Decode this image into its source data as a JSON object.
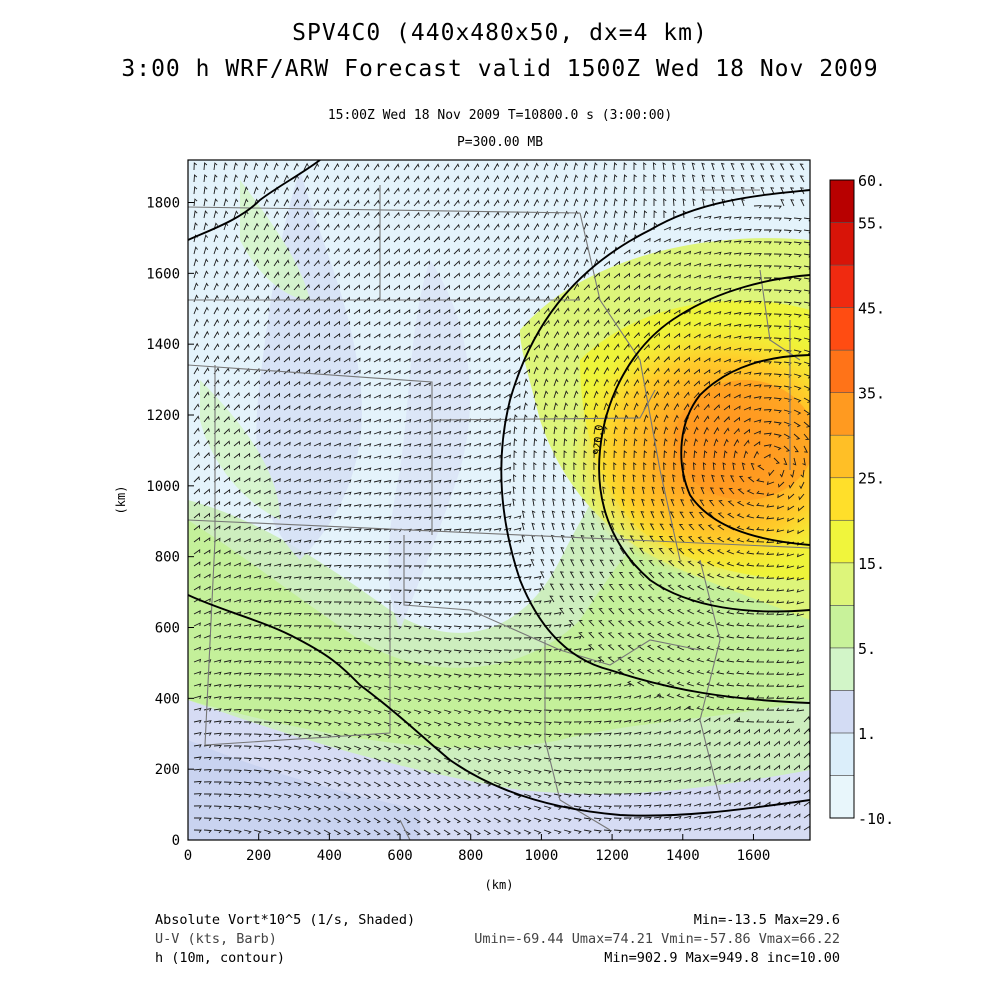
{
  "header": {
    "title": "SPV4C0 (440x480x50, dx=4 km)",
    "subtitle": "3:00 h WRF/ARW Forecast valid 1500Z Wed 18 Nov 2009",
    "valid_time": "15:00Z Wed 18 Nov 2009     T=10800.0 s (3:00:00)",
    "level": "P=300.00 MB"
  },
  "map": {
    "xlabel": "(km)",
    "ylabel": "(km)",
    "x_ticks": [
      "0",
      "200",
      "400",
      "600",
      "800",
      "1000",
      "1200",
      "1400",
      "1600"
    ],
    "y_ticks": [
      "0",
      "200",
      "400",
      "600",
      "800",
      "1000",
      "1200",
      "1400",
      "1600",
      "1800"
    ],
    "xlim": [
      0,
      1760
    ],
    "ylim": [
      0,
      1920
    ],
    "contour_label": "920.0",
    "field_peak_km": [
      1640,
      1060
    ],
    "colorbar": {
      "levels": [
        "-10.",
        "",
        "1.",
        "",
        "5.",
        "",
        "15.",
        "",
        "25.",
        "",
        "35.",
        "",
        "45.",
        "",
        "55.",
        "60."
      ],
      "colors": [
        "#e8f6fb",
        "#dbeefa",
        "#d3dcf4",
        "#d2f5c8",
        "#c8f29a",
        "#ddf57a",
        "#f0f53c",
        "#ffdf2a",
        "#ffbf26",
        "#ff9a20",
        "#ff7318",
        "#ff4c12",
        "#f02a10",
        "#d81408",
        "#b80000"
      ]
    }
  },
  "legend": {
    "shaded": "Absolute Vort*10^5 (1/s, Shaded)",
    "barb": "U-V (kts, Barb)",
    "contour": "h (10m, contour)",
    "shaded_stats": "Min=-13.5 Max=29.6",
    "barb_stats": "Umin=-69.44 Umax=74.21 Vmin=-57.86 Vmax=66.22",
    "contour_stats": "Min=902.9 Max=949.8 inc=10.00"
  }
}
